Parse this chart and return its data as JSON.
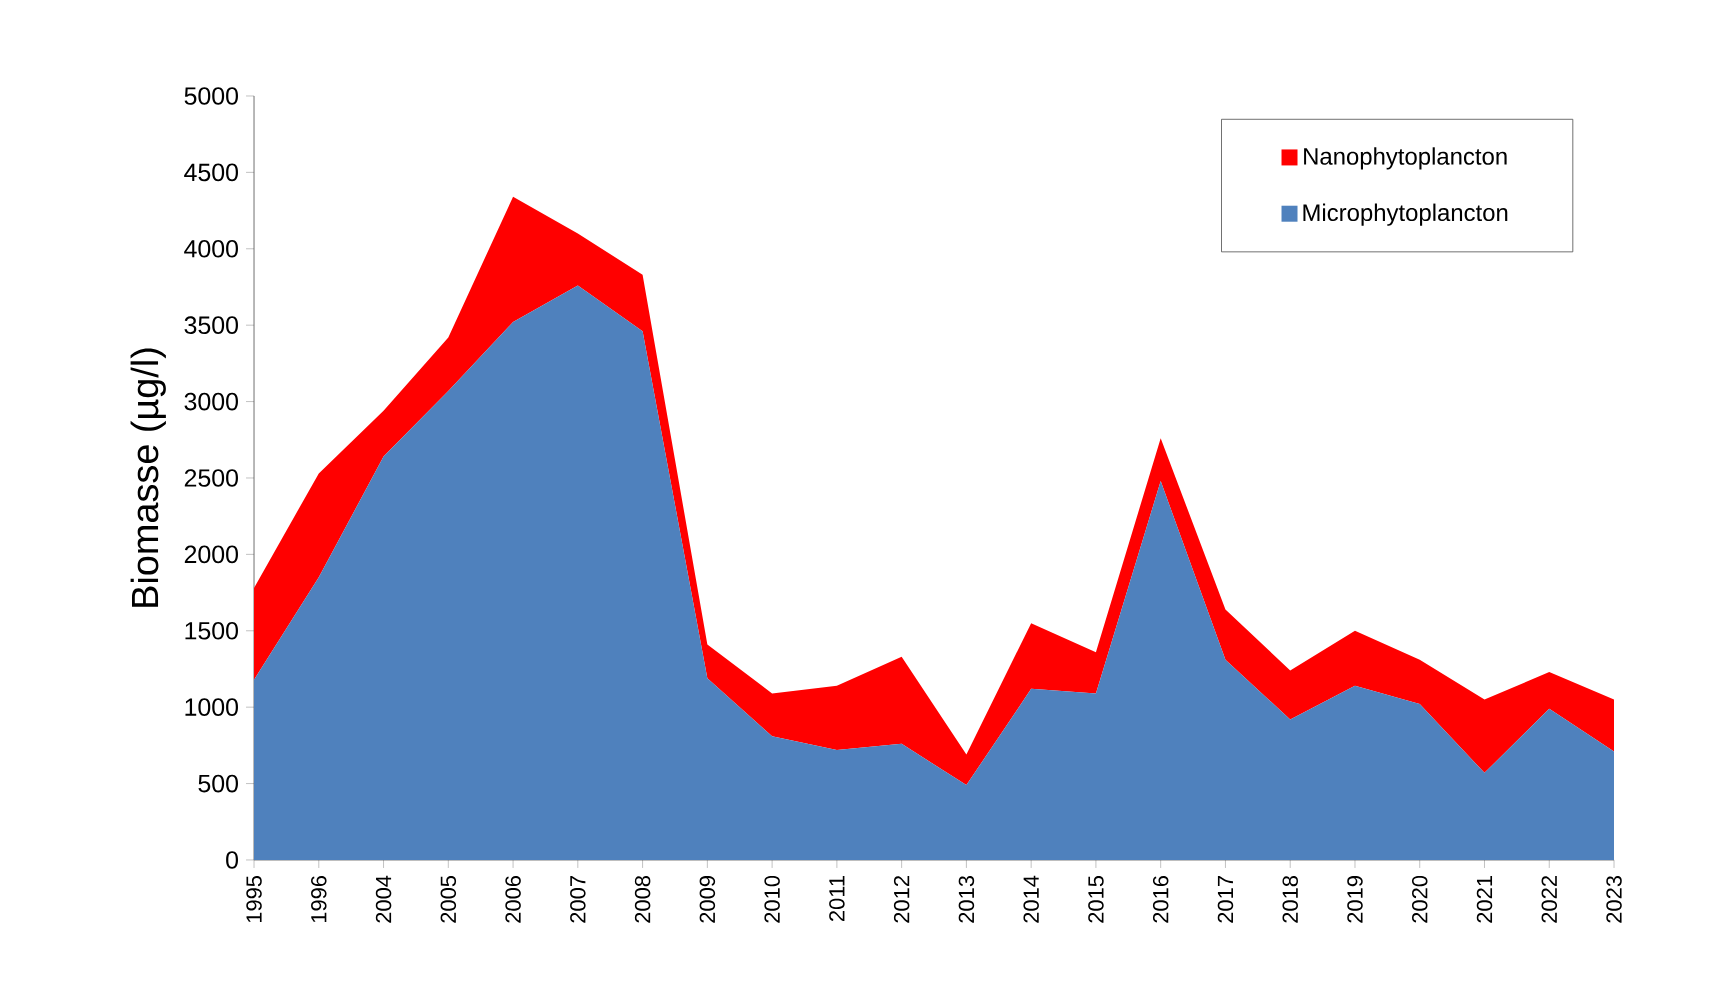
{
  "chart_data": {
    "type": "area",
    "stacked": true,
    "ylabel": "Biomasse (µg/l)",
    "categories": [
      "1995",
      "1996",
      "2004",
      "2005",
      "2006",
      "2007",
      "2008",
      "2009",
      "2010",
      "2011",
      "2012",
      "2013",
      "2014",
      "2015",
      "2016",
      "2017",
      "2018",
      "2019",
      "2020",
      "2021",
      "2022",
      "2023"
    ],
    "series": [
      {
        "name": "Microphytoplancton",
        "color": "#4f81bd",
        "values": [
          1180,
          1850,
          2640,
          3070,
          3520,
          3760,
          3460,
          1190,
          810,
          720,
          760,
          490,
          1120,
          1090,
          2480,
          1310,
          920,
          1140,
          1020,
          570,
          990,
          710
        ]
      },
      {
        "name": "Nanophytoplancton",
        "color": "#ff0000",
        "values": [
          600,
          680,
          300,
          350,
          820,
          340,
          370,
          220,
          280,
          420,
          570,
          200,
          430,
          270,
          280,
          330,
          320,
          360,
          290,
          480,
          240,
          340
        ]
      }
    ],
    "ylim": [
      0,
      5000
    ],
    "yticks": [
      0,
      500,
      1000,
      1500,
      2000,
      2500,
      3000,
      3500,
      4000,
      4500,
      5000
    ],
    "legend": "top right"
  }
}
